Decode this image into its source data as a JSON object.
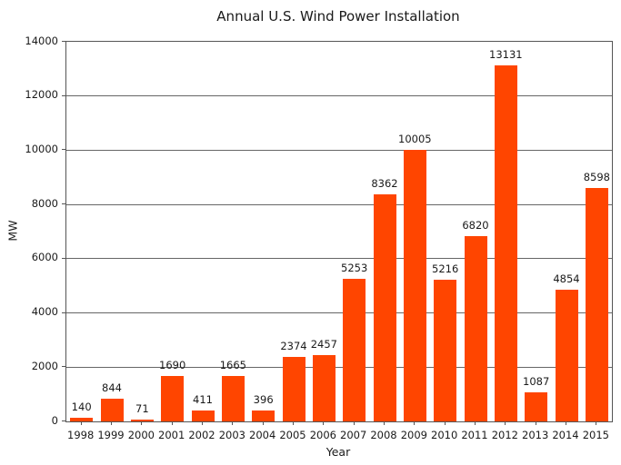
{
  "chart_data": {
    "type": "bar",
    "title": "Annual U.S. Wind Power Installation",
    "xlabel": "Year",
    "ylabel": "MW",
    "categories": [
      "1998",
      "1999",
      "2000",
      "2001",
      "2002",
      "2003",
      "2004",
      "2005",
      "2006",
      "2007",
      "2008",
      "2009",
      "2010",
      "2011",
      "2012",
      "2013",
      "2014",
      "2015"
    ],
    "values": [
      140,
      844,
      71,
      1690,
      411,
      1665,
      396,
      2374,
      2457,
      5253,
      8362,
      10005,
      5216,
      6820,
      13131,
      1087,
      4854,
      8598
    ],
    "ylim": [
      0,
      14000
    ],
    "yticks": [
      0,
      2000,
      4000,
      6000,
      8000,
      10000,
      12000,
      14000
    ],
    "grid": true,
    "legend": "none",
    "bar_color": "#FF4500",
    "grid_color": "#666666",
    "frame_color": "#555555",
    "text_color": "#1a1a1a"
  }
}
